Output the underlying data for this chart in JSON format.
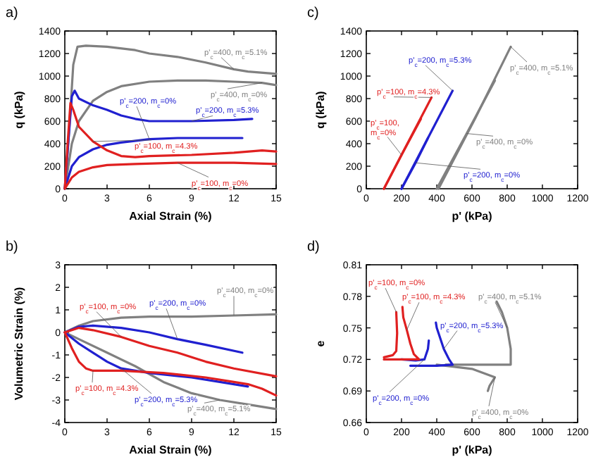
{
  "chart_data": [
    {
      "type": "line",
      "title": "a)",
      "xlabel": "Axial Strain (%)",
      "ylabel": "q (kPa)",
      "xlim": [
        0,
        15
      ],
      "ylim": [
        0,
        1400
      ],
      "xticks": [
        0,
        3,
        6,
        9,
        12,
        15
      ],
      "yticks": [
        0,
        200,
        400,
        600,
        800,
        1000,
        1200,
        1400
      ],
      "series": [
        {
          "name": "p'$_{c}$=400, m$_{c}$=5.1%",
          "color": "#808080",
          "x": [
            0,
            0.3,
            0.6,
            0.9,
            1.5,
            3,
            5,
            6,
            8,
            10,
            12,
            13,
            15
          ],
          "values": [
            0,
            500,
            1100,
            1260,
            1270,
            1260,
            1230,
            1200,
            1170,
            1120,
            1060,
            1040,
            1020
          ]
        },
        {
          "name": "p'$_{c}$=400, m$_{c}$=0%",
          "color": "#808080",
          "x": [
            0,
            0.5,
            1,
            2,
            3,
            4,
            6,
            8,
            10,
            12,
            14,
            15
          ],
          "values": [
            0,
            400,
            600,
            780,
            860,
            910,
            950,
            960,
            960,
            950,
            940,
            920
          ]
        },
        {
          "name": "p'$_{c}$=200, m$_{c}$=5.3%",
          "color": "#2020d0",
          "x": [
            0,
            0.3,
            0.5,
            0.7,
            1,
            2,
            3,
            4,
            5,
            6,
            9,
            12,
            13.3
          ],
          "values": [
            0,
            500,
            820,
            870,
            800,
            740,
            700,
            650,
            620,
            600,
            600,
            610,
            620
          ]
        },
        {
          "name": "p'$_{c}$=200, m$_{c}$=0%",
          "color": "#2020d0",
          "x": [
            0,
            0.5,
            1,
            2,
            3,
            4,
            6,
            8,
            10,
            12.6
          ],
          "values": [
            0,
            200,
            280,
            350,
            390,
            410,
            440,
            450,
            450,
            450
          ]
        },
        {
          "name": "p'$_{c}$=100, m$_{c}$=4.3%",
          "color": "#e02020",
          "x": [
            0,
            0.2,
            0.4,
            0.6,
            1,
            2,
            3,
            4,
            5,
            6,
            9,
            12,
            14,
            15
          ],
          "values": [
            0,
            400,
            760,
            700,
            550,
            420,
            340,
            290,
            280,
            290,
            300,
            320,
            340,
            330
          ]
        },
        {
          "name": "p'$_{c}$=100, m$_{c}$=0%",
          "color": "#e02020",
          "x": [
            0,
            0.5,
            1,
            2,
            3,
            5,
            8,
            12,
            15
          ],
          "values": [
            0,
            100,
            150,
            190,
            210,
            220,
            230,
            230,
            220
          ]
        }
      ]
    },
    {
      "type": "line",
      "title": "c)",
      "xlabel": "p' (kPa)",
      "ylabel": "q (kPa)",
      "xlim": [
        0,
        1200
      ],
      "ylim": [
        0,
        1400
      ],
      "xticks": [
        0,
        200,
        400,
        600,
        800,
        1000,
        1200
      ],
      "yticks": [
        0,
        200,
        400,
        600,
        800,
        1000,
        1200,
        1400
      ],
      "series": [
        {
          "name": "p'$_{c}$=400, m$_{c}$=5.1%",
          "color": "#808080",
          "x": [
            410,
            620,
            820
          ],
          "values": [
            0,
            630,
            1260
          ]
        },
        {
          "name": "p'$_{c}$=400, m$_{c}$=0%",
          "color": "#808080",
          "x": [
            400,
            570,
            730
          ],
          "values": [
            0,
            490,
            960
          ]
        },
        {
          "name": "p'$_{c}$=200, m$_{c}$=5.3%",
          "color": "#2020d0",
          "x": [
            200,
            350,
            490
          ],
          "values": [
            0,
            450,
            870
          ]
        },
        {
          "name": "p'$_{c}$=200, m$_{c}$=0%",
          "color": "#2020d0",
          "x": [
            200,
            280,
            350
          ],
          "values": [
            0,
            230,
            450
          ]
        },
        {
          "name": "p'$_{c}$=100, m$_{c}$=4.3%",
          "color": "#e02020",
          "x": [
            100,
            240,
            370
          ],
          "values": [
            0,
            420,
            810
          ]
        },
        {
          "name": "p'$_{c}$=100, m$_{c}$=0%",
          "color": "#e02020",
          "x": [
            100,
            200,
            310
          ],
          "values": [
            0,
            300,
            620
          ]
        }
      ]
    },
    {
      "type": "line",
      "title": "b)",
      "xlabel": "Axial Strain (%)",
      "ylabel": "Volumetric Strain (%)",
      "xlim": [
        0,
        15
      ],
      "ylim": [
        -4,
        3
      ],
      "xticks": [
        0,
        3,
        6,
        9,
        12,
        15
      ],
      "yticks": [
        -4,
        -3,
        -2,
        -1,
        0,
        1,
        2,
        3
      ],
      "series": [
        {
          "name": "p'$_{c}$=400, m$_{c}$=5.1%",
          "color": "#808080",
          "x": [
            0,
            1,
            3,
            5,
            7,
            9,
            11,
            13,
            15
          ],
          "values": [
            0,
            -0.3,
            -0.9,
            -1.5,
            -2.2,
            -2.7,
            -3,
            -3.2,
            -3.4
          ]
        },
        {
          "name": "p'$_{c}$=400, m$_{c}$=0%",
          "color": "#808080",
          "x": [
            0,
            1,
            2,
            4,
            6,
            9,
            12,
            15
          ],
          "values": [
            0,
            0.3,
            0.5,
            0.65,
            0.7,
            0.7,
            0.75,
            0.8
          ]
        },
        {
          "name": "p'$_{c}$=200, m$_{c}$=5.3%",
          "color": "#2020d0",
          "x": [
            0,
            1,
            2,
            3,
            4,
            6,
            9,
            11,
            13
          ],
          "values": [
            0,
            -0.5,
            -0.9,
            -1.3,
            -1.6,
            -1.8,
            -2,
            -2.2,
            -2.4
          ]
        },
        {
          "name": "p'$_{c}$=200, m$_{c}$=0%",
          "color": "#2020d0",
          "x": [
            0,
            1,
            2,
            4,
            6,
            8,
            10,
            12.6
          ],
          "values": [
            0,
            0.25,
            0.3,
            0.2,
            0,
            -0.3,
            -0.55,
            -0.9
          ]
        },
        {
          "name": "p'$_{c}$=100, m$_{c}$=4.3%",
          "color": "#e02020",
          "x": [
            0,
            0.5,
            1,
            1.5,
            2,
            4,
            7,
            10,
            12,
            13,
            14,
            15
          ],
          "values": [
            0,
            -0.7,
            -1.3,
            -1.6,
            -1.7,
            -1.7,
            -1.8,
            -2,
            -2.2,
            -2.3,
            -2.5,
            -2.8
          ]
        },
        {
          "name": "p'$_{c}$=100, m$_{c}$=0%",
          "color": "#e02020",
          "x": [
            0,
            1,
            2,
            4,
            6,
            8,
            10,
            12,
            15
          ],
          "values": [
            0,
            0.2,
            0.1,
            -0.2,
            -0.6,
            -0.9,
            -1.3,
            -1.6,
            -1.95
          ]
        }
      ]
    },
    {
      "type": "line",
      "title": "d)",
      "xlabel": "p' (kPa)",
      "ylabel": "e",
      "xlim": [
        0,
        1200
      ],
      "ylim": [
        0.66,
        0.81
      ],
      "xticks": [
        0,
        200,
        400,
        600,
        800,
        1000,
        1200
      ],
      "yticks": [
        0.66,
        0.69,
        0.72,
        0.75,
        0.78,
        0.81
      ],
      "series": [
        {
          "name": "p'$_{c}$=400, m$_{c}$=5.1%",
          "color": "#808080",
          "x": [
            450,
            820,
            820,
            800,
            770,
            740
          ],
          "values": [
            0.715,
            0.715,
            0.73,
            0.75,
            0.765,
            0.775
          ]
        },
        {
          "name": "p'$_{c}$=400, m$_{c}$=0%",
          "color": "#808080",
          "x": [
            400,
            600,
            730,
            700,
            690
          ],
          "values": [
            0.715,
            0.711,
            0.703,
            0.695,
            0.69
          ]
        },
        {
          "name": "p'$_{c}$=200, m$_{c}$=5.3%",
          "color": "#2020d0",
          "x": [
            250,
            400,
            490,
            470,
            440,
            420,
            400,
            395
          ],
          "values": [
            0.714,
            0.714,
            0.715,
            0.72,
            0.73,
            0.74,
            0.75,
            0.755
          ]
        },
        {
          "name": "p'$_{c}$=200, m$_{c}$=0%",
          "color": "#2020d0",
          "x": [
            200,
            280,
            330,
            350,
            355
          ],
          "values": [
            0.72,
            0.719,
            0.72,
            0.73,
            0.738
          ]
        },
        {
          "name": "p'$_{c}$=100, m$_{c}$=4.3%",
          "color": "#e02020",
          "x": [
            100,
            300,
            270,
            250,
            230,
            210,
            205
          ],
          "values": [
            0.72,
            0.72,
            0.725,
            0.735,
            0.748,
            0.76,
            0.77
          ]
        },
        {
          "name": "p'$_{c}$=100, m$_{c}$=0%",
          "color": "#e02020",
          "x": [
            100,
            150,
            170,
            175,
            170
          ],
          "values": [
            0.722,
            0.724,
            0.728,
            0.745,
            0.765
          ]
        }
      ]
    }
  ]
}
